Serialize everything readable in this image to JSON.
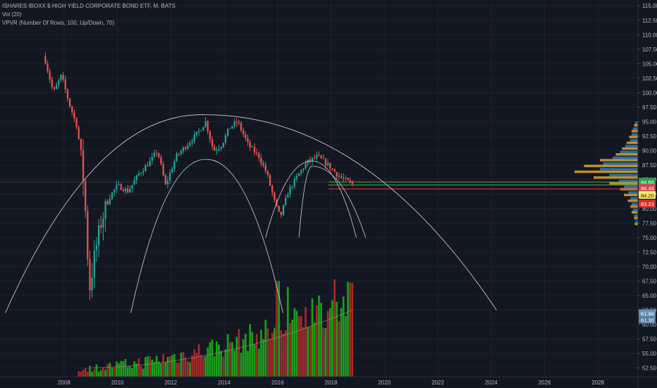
{
  "legend": {
    "symbol_line": "ISHARES IBOXX $ HIGH YIELD CORPORATE BOND ETF, M, BATS",
    "vol_line": "Vol (20)",
    "vpvr_line": "VPVR (Number Of Rows, 100, Up/Down, 70)"
  },
  "colors": {
    "background": "#131722",
    "grid": "#1e222d",
    "up": "#26a69a",
    "down": "#ef5350",
    "volume_up": "#1b9e1b",
    "volume_down": "#a32a2a",
    "vpvr_up": "#2a7fc4",
    "vpvr_down": "#e0a52a",
    "arc": "#d1d4dc",
    "green_line": "#4caf50",
    "red_line": "#e53935"
  },
  "chart_data": {
    "type": "candlestick",
    "interval": "monthly",
    "ylim": [
      51,
      116
    ],
    "y_ticks": [
      "52.50",
      "55.00",
      "57.50",
      "60.00",
      "62.50",
      "65.00",
      "67.50",
      "70.00",
      "72.50",
      "75.00",
      "77.50",
      "80.00",
      "82.50",
      "85.00",
      "87.50",
      "90.00",
      "92.50",
      "95.00",
      "97.50",
      "100.00",
      "102.50",
      "105.00",
      "107.50",
      "110.00",
      "112.50",
      "115.00"
    ],
    "x_ticks": [
      "2008",
      "2010",
      "2012",
      "2014",
      "2016",
      "2018",
      "2020",
      "2022",
      "2024",
      "2026",
      "2028"
    ],
    "x_range": [
      2005.6,
      2029.5
    ],
    "anchors": [
      [
        2007.3,
        105.5
      ],
      [
        2007.6,
        100
      ],
      [
        2007.9,
        103
      ],
      [
        2008.2,
        98
      ],
      [
        2008.5,
        94
      ],
      [
        2008.75,
        84
      ],
      [
        2008.95,
        66
      ],
      [
        2009.15,
        72
      ],
      [
        2009.4,
        78
      ],
      [
        2009.7,
        82
      ],
      [
        2010.0,
        84
      ],
      [
        2010.4,
        83
      ],
      [
        2010.8,
        86
      ],
      [
        2011.2,
        88
      ],
      [
        2011.5,
        90
      ],
      [
        2011.8,
        84
      ],
      [
        2012.2,
        89
      ],
      [
        2012.6,
        91
      ],
      [
        2013.0,
        93
      ],
      [
        2013.3,
        95
      ],
      [
        2013.6,
        90
      ],
      [
        2013.9,
        91
      ],
      [
        2014.2,
        94
      ],
      [
        2014.5,
        95
      ],
      [
        2014.9,
        91
      ],
      [
        2015.3,
        89
      ],
      [
        2015.6,
        86
      ],
      [
        2015.9,
        81
      ],
      [
        2016.1,
        78.5
      ],
      [
        2016.4,
        83
      ],
      [
        2016.8,
        86
      ],
      [
        2017.1,
        88
      ],
      [
        2017.5,
        89
      ],
      [
        2017.9,
        87.5
      ],
      [
        2018.2,
        86
      ],
      [
        2018.5,
        85
      ],
      [
        2018.8,
        84.2
      ]
    ],
    "volume": {
      "scale_max": 67.5,
      "spikes": [
        [
          2016.0,
          67.5
        ],
        [
          2016.4,
          66.5
        ],
        [
          2017.3,
          64.5
        ],
        [
          2017.55,
          65
        ],
        [
          2018.15,
          67.8
        ],
        [
          2018.75,
          67.2
        ]
      ]
    },
    "arcs": [
      {
        "from": [
          2005.8,
          62
        ],
        "peak": [
          2013.3,
          96.2
        ],
        "to": [
          2024.2,
          62.5
        ]
      },
      {
        "from": [
          2010.5,
          62
        ],
        "peak": [
          2013.35,
          88.5
        ],
        "to": [
          2016.2,
          62
        ]
      },
      {
        "from": [
          2015.55,
          75
        ],
        "peak": [
          2017.3,
          88.2
        ],
        "to": [
          2018.95,
          75
        ]
      },
      {
        "from": [
          2016.8,
          75
        ],
        "peak": [
          2017.3,
          87.3
        ],
        "to": [
          2019.3,
          75
        ]
      }
    ],
    "levels": [
      {
        "value": 84.6,
        "color": "green",
        "x_start": 2017.9
      },
      {
        "value": 84.1,
        "color": "green",
        "x_start": 2017.9
      },
      {
        "value": 83.4,
        "color": "red",
        "x_start": 2017.9
      }
    ],
    "crosshair_price": 84.6,
    "price_tags": [
      {
        "label": "84.60",
        "value": 84.6,
        "color": "#2e9c4e"
      },
      {
        "label": "84.44",
        "value": 83.55,
        "color": "#c8494a"
      },
      {
        "label": "84.20",
        "value": 82.3,
        "color": "#f5e663"
      },
      {
        "label": "83.23",
        "value": 80.8,
        "color": "#d32f2f"
      },
      {
        "label": "61.96",
        "value": 61.9,
        "color": "#6a8fb5"
      },
      {
        "label": "61.30",
        "value": 60.8,
        "color": "#5a7fa5"
      }
    ],
    "vpvr_profile": [
      [
        94.5,
        0.05,
        0.06
      ],
      [
        93.5,
        0.08,
        0.1
      ],
      [
        92.5,
        0.1,
        0.14
      ],
      [
        91.5,
        0.12,
        0.18
      ],
      [
        90.5,
        0.2,
        0.25
      ],
      [
        89.5,
        0.28,
        0.35
      ],
      [
        88.5,
        0.4,
        0.6
      ],
      [
        87.5,
        0.55,
        0.85
      ],
      [
        86.5,
        0.6,
        1.0
      ],
      [
        85.5,
        0.45,
        0.7
      ],
      [
        84.5,
        0.3,
        0.45
      ],
      [
        83.5,
        0.22,
        0.28
      ],
      [
        82.5,
        0.15,
        0.22
      ],
      [
        81.5,
        0.12,
        0.16
      ],
      [
        80.5,
        0.1,
        0.12
      ],
      [
        79.5,
        0.08,
        0.1
      ],
      [
        78.5,
        0.06,
        0.06
      ],
      [
        77.5,
        0.04,
        0.05
      ]
    ]
  }
}
